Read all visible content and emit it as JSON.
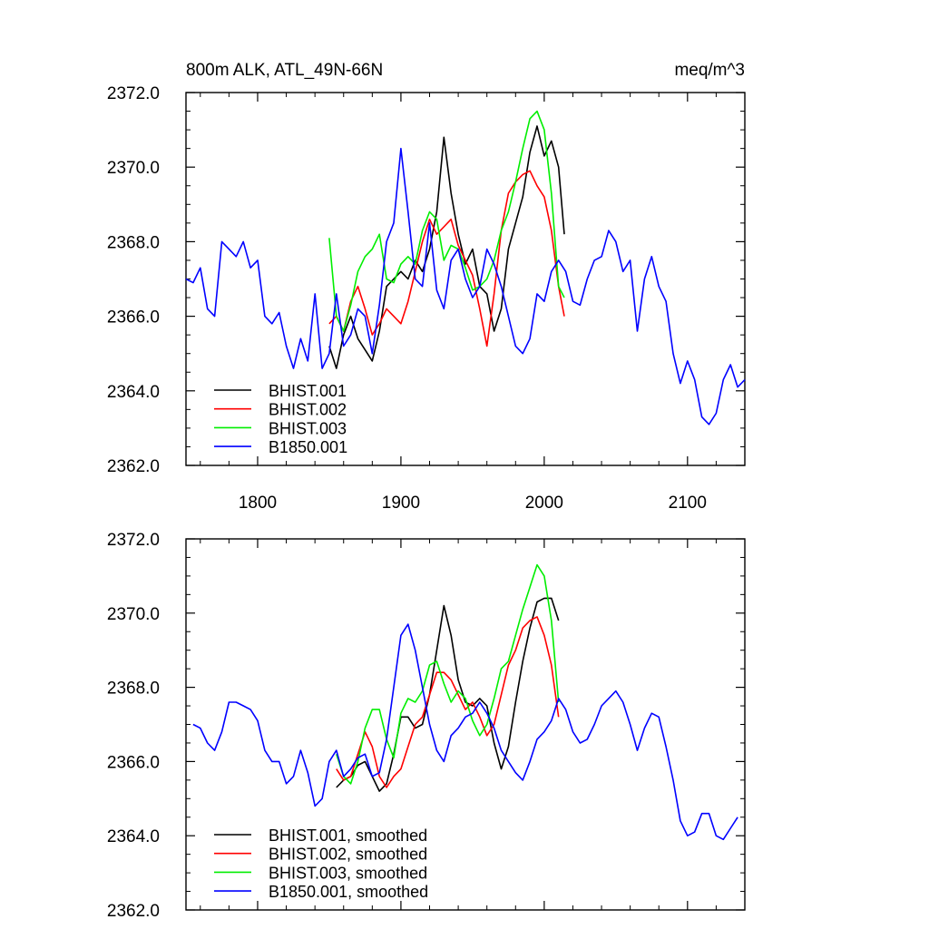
{
  "figure": {
    "title_left": "800m ALK, ATL_49N-66N",
    "title_right": "meq/m^3"
  },
  "colors": {
    "BHIST.001": "#000000",
    "BHIST.002": "#ff0000",
    "BHIST.003": "#00ee00",
    "B1850.001": "#0000ff"
  },
  "chart_data": [
    {
      "type": "line",
      "title": "800m ALK, ATL_49N-66N",
      "units_label": "meq/m^3",
      "xlabel": "",
      "ylabel": "",
      "xlim": [
        1750,
        2140
      ],
      "ylim": [
        2362.0,
        2372.0
      ],
      "x_ticks": [
        1800,
        1900,
        2000,
        2100
      ],
      "x_tick_labels": [
        "1800",
        "1900",
        "2000",
        "2100"
      ],
      "y_ticks": [
        2362.0,
        2364.0,
        2366.0,
        2368.0,
        2370.0,
        2372.0
      ],
      "y_tick_labels": [
        "2362.0",
        "2364.0",
        "2366.0",
        "2368.0",
        "2370.0",
        "2372.0"
      ],
      "legend_placement": "bottom-left",
      "series": [
        {
          "name": "BHIST.001",
          "label": "BHIST.001",
          "color": "#000000",
          "x": [
            1850,
            1855,
            1860,
            1865,
            1870,
            1875,
            1880,
            1885,
            1890,
            1895,
            1900,
            1905,
            1910,
            1915,
            1920,
            1925,
            1930,
            1935,
            1940,
            1945,
            1950,
            1955,
            1960,
            1965,
            1970,
            1975,
            1980,
            1985,
            1990,
            1995,
            2000,
            2005,
            2010,
            2014
          ],
          "y": [
            2365.2,
            2364.6,
            2365.5,
            2366.0,
            2365.4,
            2365.1,
            2364.8,
            2365.6,
            2366.8,
            2367.0,
            2367.2,
            2367.0,
            2367.5,
            2367.2,
            2367.8,
            2368.8,
            2370.8,
            2369.3,
            2368.2,
            2367.4,
            2367.8,
            2366.8,
            2366.6,
            2365.6,
            2366.2,
            2367.8,
            2368.5,
            2369.2,
            2370.4,
            2371.1,
            2370.3,
            2370.7,
            2370.0,
            2368.2
          ]
        },
        {
          "name": "BHIST.002",
          "label": "BHIST.002",
          "color": "#ff0000",
          "x": [
            1850,
            1855,
            1860,
            1865,
            1870,
            1875,
            1880,
            1885,
            1890,
            1895,
            1900,
            1905,
            1910,
            1915,
            1920,
            1925,
            1930,
            1935,
            1940,
            1945,
            1950,
            1955,
            1960,
            1965,
            1970,
            1975,
            1980,
            1985,
            1990,
            1995,
            2000,
            2005,
            2010,
            2014
          ],
          "y": [
            2365.8,
            2366.0,
            2365.6,
            2366.4,
            2366.8,
            2366.2,
            2365.5,
            2365.8,
            2366.2,
            2366.0,
            2365.8,
            2366.4,
            2367.2,
            2368.0,
            2368.6,
            2368.2,
            2368.4,
            2368.6,
            2367.9,
            2367.5,
            2367.1,
            2366.2,
            2365.2,
            2366.6,
            2368.3,
            2369.3,
            2369.6,
            2369.8,
            2369.9,
            2369.5,
            2369.2,
            2368.3,
            2366.8,
            2366.0
          ]
        },
        {
          "name": "BHIST.003",
          "label": "BHIST.003",
          "color": "#00ee00",
          "x": [
            1850,
            1855,
            1860,
            1865,
            1870,
            1875,
            1880,
            1885,
            1890,
            1895,
            1900,
            1905,
            1910,
            1915,
            1920,
            1925,
            1930,
            1935,
            1940,
            1945,
            1950,
            1955,
            1960,
            1965,
            1970,
            1975,
            1980,
            1985,
            1990,
            1995,
            2000,
            2005,
            2010,
            2014
          ],
          "y": [
            2368.1,
            2366.0,
            2365.6,
            2366.3,
            2367.2,
            2367.6,
            2367.8,
            2368.2,
            2367.0,
            2366.9,
            2367.4,
            2367.6,
            2367.4,
            2368.3,
            2368.8,
            2368.6,
            2367.5,
            2367.9,
            2367.8,
            2367.3,
            2366.7,
            2366.8,
            2367.0,
            2367.5,
            2368.3,
            2368.8,
            2369.6,
            2370.5,
            2371.3,
            2371.5,
            2371.0,
            2369.3,
            2366.8,
            2366.5
          ]
        },
        {
          "name": "B1850.001",
          "label": "B1850.001",
          "color": "#0000ff",
          "x": [
            1750,
            1755,
            1760,
            1765,
            1770,
            1775,
            1780,
            1785,
            1790,
            1795,
            1800,
            1805,
            1810,
            1815,
            1820,
            1825,
            1830,
            1835,
            1840,
            1845,
            1850,
            1855,
            1860,
            1865,
            1870,
            1875,
            1880,
            1885,
            1890,
            1895,
            1900,
            1905,
            1910,
            1915,
            1920,
            1925,
            1930,
            1935,
            1940,
            1945,
            1950,
            1955,
            1960,
            1965,
            1970,
            1975,
            1980,
            1985,
            1990,
            1995,
            2000,
            2005,
            2010,
            2015,
            2020,
            2025,
            2030,
            2035,
            2040,
            2045,
            2050,
            2055,
            2060,
            2065,
            2070,
            2075,
            2080,
            2085,
            2090,
            2095,
            2100,
            2105,
            2110,
            2115,
            2120,
            2125,
            2130,
            2135,
            2140
          ],
          "y": [
            2367.0,
            2366.9,
            2367.3,
            2366.2,
            2366.0,
            2368.0,
            2367.8,
            2367.6,
            2368.0,
            2367.3,
            2367.5,
            2366.0,
            2365.8,
            2366.1,
            2365.2,
            2364.6,
            2365.4,
            2364.8,
            2366.6,
            2364.6,
            2365.0,
            2366.6,
            2365.2,
            2365.5,
            2366.2,
            2366.0,
            2365.0,
            2366.3,
            2368.0,
            2368.5,
            2370.5,
            2368.8,
            2367.0,
            2366.8,
            2368.5,
            2366.7,
            2366.2,
            2367.5,
            2367.8,
            2367.0,
            2366.5,
            2366.8,
            2367.8,
            2367.4,
            2366.8,
            2366.0,
            2365.2,
            2365.0,
            2365.4,
            2366.6,
            2366.4,
            2367.2,
            2367.5,
            2367.2,
            2366.4,
            2366.3,
            2367.0,
            2367.5,
            2367.6,
            2368.3,
            2368.0,
            2367.2,
            2367.5,
            2365.6,
            2367.0,
            2367.6,
            2366.8,
            2366.4,
            2365.0,
            2364.2,
            2364.8,
            2364.3,
            2363.3,
            2363.1,
            2363.4,
            2364.3,
            2364.7,
            2364.1,
            2364.3
          ]
        }
      ]
    },
    {
      "type": "line",
      "title": "",
      "xlabel": "",
      "ylabel": "",
      "xlim": [
        1750,
        2140
      ],
      "ylim": [
        2362.0,
        2372.0
      ],
      "x_ticks": [
        1800,
        1900,
        2000,
        2100
      ],
      "y_ticks": [
        2362.0,
        2364.0,
        2366.0,
        2368.0,
        2370.0,
        2372.0
      ],
      "y_tick_labels": [
        "2362.0",
        "2364.0",
        "2366.0",
        "2368.0",
        "2370.0",
        "2372.0"
      ],
      "legend_placement": "bottom-left",
      "series": [
        {
          "name": "BHIST.001",
          "label": "BHIST.001, smoothed",
          "color": "#000000",
          "x": [
            1855,
            1860,
            1865,
            1870,
            1875,
            1880,
            1885,
            1890,
            1895,
            1900,
            1905,
            1910,
            1915,
            1920,
            1925,
            1930,
            1935,
            1940,
            1945,
            1950,
            1955,
            1960,
            1965,
            1970,
            1975,
            1980,
            1985,
            1990,
            1995,
            2000,
            2005,
            2010
          ],
          "y": [
            2365.3,
            2365.5,
            2365.6,
            2365.9,
            2366.0,
            2365.6,
            2365.2,
            2365.4,
            2366.2,
            2367.2,
            2367.2,
            2366.9,
            2367.0,
            2367.8,
            2369.0,
            2370.2,
            2369.4,
            2368.2,
            2367.6,
            2367.5,
            2367.7,
            2367.5,
            2366.5,
            2365.8,
            2366.4,
            2367.6,
            2368.7,
            2369.6,
            2370.3,
            2370.4,
            2370.4,
            2369.8
          ]
        },
        {
          "name": "BHIST.002",
          "label": "BHIST.002, smoothed",
          "color": "#ff0000",
          "x": [
            1855,
            1860,
            1865,
            1870,
            1875,
            1880,
            1885,
            1890,
            1895,
            1900,
            1905,
            1910,
            1915,
            1920,
            1925,
            1930,
            1935,
            1940,
            1945,
            1950,
            1955,
            1960,
            1965,
            1970,
            1975,
            1980,
            1985,
            1990,
            1995,
            2000,
            2005,
            2010
          ],
          "y": [
            2365.8,
            2365.5,
            2365.6,
            2366.2,
            2366.8,
            2366.4,
            2365.6,
            2365.3,
            2365.6,
            2365.8,
            2366.4,
            2367.0,
            2367.2,
            2367.8,
            2368.4,
            2368.4,
            2368.2,
            2367.8,
            2367.4,
            2367.6,
            2367.2,
            2366.7,
            2367.0,
            2367.8,
            2368.6,
            2369.0,
            2369.6,
            2369.8,
            2369.9,
            2369.4,
            2368.6,
            2367.2
          ]
        },
        {
          "name": "BHIST.003",
          "label": "BHIST.003, smoothed",
          "color": "#00ee00",
          "x": [
            1855,
            1860,
            1865,
            1870,
            1875,
            1880,
            1885,
            1890,
            1895,
            1900,
            1905,
            1910,
            1915,
            1920,
            1925,
            1930,
            1935,
            1940,
            1945,
            1950,
            1955,
            1960,
            1965,
            1970,
            1975,
            1980,
            1985,
            1990,
            1995,
            2000,
            2005,
            2010
          ],
          "y": [
            2366.2,
            2365.6,
            2365.4,
            2366.0,
            2366.9,
            2367.4,
            2367.4,
            2366.6,
            2366.1,
            2367.3,
            2367.7,
            2367.6,
            2367.9,
            2368.6,
            2368.7,
            2368.1,
            2367.6,
            2367.9,
            2367.7,
            2367.1,
            2366.7,
            2367.0,
            2367.7,
            2368.5,
            2368.7,
            2369.4,
            2370.1,
            2370.7,
            2371.3,
            2371.0,
            2369.8,
            2367.6
          ]
        },
        {
          "name": "B1850.001",
          "label": "B1850.001, smoothed",
          "color": "#0000ff",
          "x": [
            1755,
            1760,
            1765,
            1770,
            1775,
            1780,
            1785,
            1790,
            1795,
            1800,
            1805,
            1810,
            1815,
            1820,
            1825,
            1830,
            1835,
            1840,
            1845,
            1850,
            1855,
            1860,
            1865,
            1870,
            1875,
            1880,
            1885,
            1890,
            1895,
            1900,
            1905,
            1910,
            1915,
            1920,
            1925,
            1930,
            1935,
            1940,
            1945,
            1950,
            1955,
            1960,
            1965,
            1970,
            1975,
            1980,
            1985,
            1990,
            1995,
            2000,
            2005,
            2010,
            2015,
            2020,
            2025,
            2030,
            2035,
            2040,
            2045,
            2050,
            2055,
            2060,
            2065,
            2070,
            2075,
            2080,
            2085,
            2090,
            2095,
            2100,
            2105,
            2110,
            2115,
            2120,
            2125,
            2130,
            2135
          ],
          "y": [
            2367.0,
            2366.9,
            2366.5,
            2366.3,
            2366.8,
            2367.6,
            2367.6,
            2367.5,
            2367.4,
            2367.1,
            2366.3,
            2366.0,
            2366.0,
            2365.4,
            2365.6,
            2366.3,
            2365.7,
            2364.8,
            2365.0,
            2366.0,
            2366.3,
            2365.6,
            2365.8,
            2366.1,
            2366.2,
            2365.6,
            2365.7,
            2366.6,
            2368.0,
            2369.4,
            2369.7,
            2369.0,
            2368.0,
            2367.0,
            2366.3,
            2366.0,
            2366.7,
            2366.9,
            2367.2,
            2367.3,
            2367.6,
            2367.3,
            2366.9,
            2366.3,
            2366.0,
            2365.7,
            2365.5,
            2366.0,
            2366.6,
            2366.8,
            2367.1,
            2367.7,
            2367.4,
            2366.8,
            2366.5,
            2366.6,
            2367.0,
            2367.5,
            2367.7,
            2367.9,
            2367.6,
            2367.0,
            2366.3,
            2366.9,
            2367.3,
            2367.2,
            2366.4,
            2365.5,
            2364.4,
            2364.0,
            2364.1,
            2364.6,
            2364.6,
            2364.0,
            2363.9,
            2364.2,
            2364.5
          ]
        }
      ]
    }
  ]
}
